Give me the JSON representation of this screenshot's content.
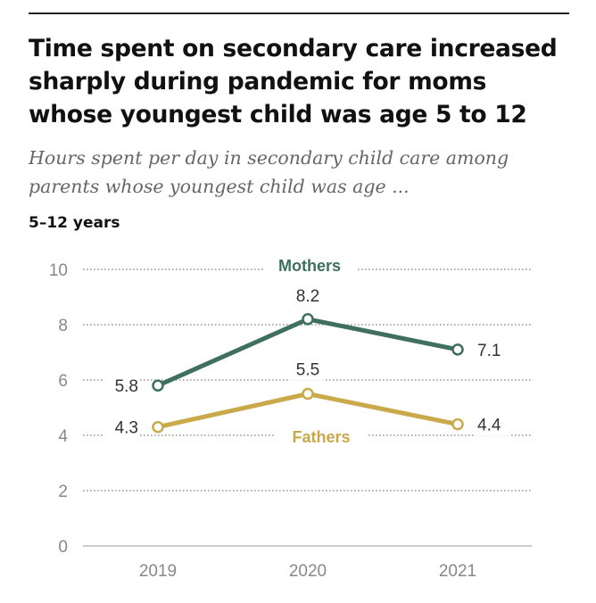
{
  "title": "Time spent on secondary care increased sharply during pandemic for moms whose youngest child was age 5 to 12",
  "subtitle": "Hours spent per day in secondary child care among parents whose youngest child was age ...",
  "panel_label": "5–12 years",
  "colors": {
    "mothers": "#3e6f60",
    "fathers": "#c9a94a",
    "grid": "#999999",
    "axis": "#bbbbbb"
  },
  "chart_data": {
    "type": "line",
    "categories": [
      "2019",
      "2020",
      "2021"
    ],
    "yticks": [
      "0",
      "2",
      "4",
      "6",
      "8",
      "10"
    ],
    "ylim": [
      0,
      10
    ],
    "grid": true,
    "series": [
      {
        "name": "Mothers",
        "values": [
          5.8,
          8.2,
          7.1
        ],
        "labels": [
          "5.8",
          "8.2",
          "7.1"
        ]
      },
      {
        "name": "Fathers",
        "values": [
          4.3,
          5.5,
          4.4
        ],
        "labels": [
          "4.3",
          "5.5",
          "4.4"
        ]
      }
    ]
  }
}
